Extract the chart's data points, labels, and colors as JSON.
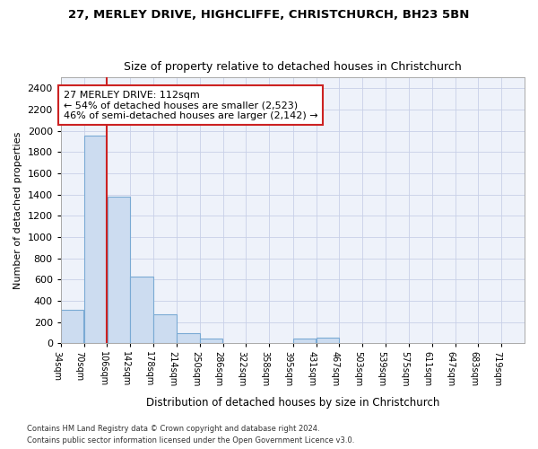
{
  "title1": "27, MERLEY DRIVE, HIGHCLIFFE, CHRISTCHURCH, BH23 5BN",
  "title2": "Size of property relative to detached houses in Christchurch",
  "xlabel": "Distribution of detached houses by size in Christchurch",
  "ylabel": "Number of detached properties",
  "bin_edges": [
    34,
    70,
    106,
    142,
    178,
    214,
    250,
    286,
    322,
    358,
    395,
    431,
    467,
    503,
    539,
    575,
    611,
    647,
    683,
    719,
    755
  ],
  "bar_heights": [
    315,
    1950,
    1380,
    630,
    270,
    95,
    45,
    0,
    0,
    0,
    48,
    50,
    0,
    0,
    0,
    0,
    0,
    0,
    0,
    0
  ],
  "bar_color": "#ccdcf0",
  "bar_edge_color": "#7aaad4",
  "property_line_x": 106,
  "property_line_color": "#cc2222",
  "ylim": [
    0,
    2500
  ],
  "yticks": [
    0,
    200,
    400,
    600,
    800,
    1000,
    1200,
    1400,
    1600,
    1800,
    2000,
    2200,
    2400
  ],
  "annotation_text": "27 MERLEY DRIVE: 112sqm\n← 54% of detached houses are smaller (2,523)\n46% of semi-detached houses are larger (2,142) →",
  "annotation_box_facecolor": "#ffffff",
  "annotation_box_edgecolor": "#cc2222",
  "footer1": "Contains HM Land Registry data © Crown copyright and database right 2024.",
  "footer2": "Contains public sector information licensed under the Open Government Licence v3.0.",
  "background_color": "#ffffff",
  "plot_bg_color": "#eef2fa",
  "grid_color": "#c8d0e8"
}
